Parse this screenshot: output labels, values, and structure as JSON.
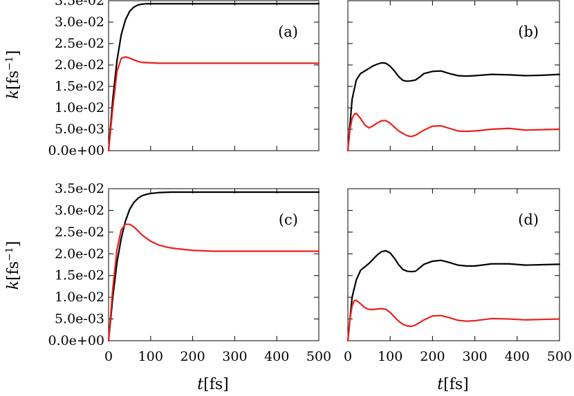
{
  "chart_data": [
    {
      "type": "line",
      "panel_label": "(a)",
      "xlim": [
        0,
        500
      ],
      "ylim": [
        0,
        0.035
      ],
      "grid": false,
      "series": [
        {
          "color": "#000000",
          "x": [
            0,
            10,
            20,
            30,
            40,
            50,
            60,
            70,
            80,
            90,
            100,
            120,
            150,
            200,
            300,
            400,
            500
          ],
          "values": [
            0,
            0.012,
            0.021,
            0.027,
            0.0305,
            0.0325,
            0.0335,
            0.034,
            0.0342,
            0.0343,
            0.0343,
            0.0343,
            0.0343,
            0.0343,
            0.0343,
            0.0343,
            0.0343
          ]
        },
        {
          "color": "#e8201b",
          "x": [
            0,
            10,
            20,
            30,
            40,
            50,
            60,
            70,
            80,
            100,
            120,
            150,
            200,
            300,
            400,
            500
          ],
          "values": [
            0,
            0.01,
            0.0185,
            0.0215,
            0.0219,
            0.0216,
            0.0212,
            0.0208,
            0.0206,
            0.0205,
            0.0204,
            0.0204,
            0.0204,
            0.0204,
            0.0204,
            0.0204
          ]
        }
      ]
    },
    {
      "type": "line",
      "panel_label": "(b)",
      "xlim": [
        0,
        500
      ],
      "ylim": [
        0,
        0.035
      ],
      "grid": false,
      "series": [
        {
          "color": "#000000",
          "x": [
            0,
            10,
            20,
            30,
            40,
            50,
            60,
            70,
            80,
            90,
            100,
            110,
            120,
            130,
            140,
            150,
            160,
            170,
            180,
            200,
            220,
            240,
            260,
            280,
            300,
            340,
            380,
            420,
            460,
            500
          ],
          "values": [
            0,
            0.012,
            0.0165,
            0.018,
            0.0186,
            0.0192,
            0.0198,
            0.0202,
            0.0205,
            0.0204,
            0.0197,
            0.0186,
            0.0173,
            0.0164,
            0.0162,
            0.0163,
            0.0165,
            0.0172,
            0.018,
            0.0185,
            0.0186,
            0.018,
            0.0175,
            0.0174,
            0.0175,
            0.0178,
            0.0177,
            0.0175,
            0.0176,
            0.0178
          ]
        },
        {
          "color": "#e8201b",
          "x": [
            0,
            5,
            10,
            15,
            20,
            30,
            40,
            50,
            60,
            70,
            80,
            90,
            100,
            110,
            120,
            130,
            140,
            150,
            160,
            180,
            200,
            220,
            240,
            260,
            280,
            300,
            340,
            380,
            420,
            460,
            500
          ],
          "values": [
            0,
            0.005,
            0.0075,
            0.0085,
            0.0087,
            0.0075,
            0.006,
            0.0053,
            0.0058,
            0.0065,
            0.007,
            0.007,
            0.0064,
            0.0055,
            0.0046,
            0.004,
            0.0035,
            0.0033,
            0.0036,
            0.0048,
            0.0057,
            0.0058,
            0.0052,
            0.0046,
            0.0045,
            0.0046,
            0.005,
            0.0052,
            0.0048,
            0.0049,
            0.005
          ]
        }
      ]
    },
    {
      "type": "line",
      "panel_label": "(c)",
      "xlim": [
        0,
        500
      ],
      "ylim": [
        0,
        0.035
      ],
      "grid": false,
      "series": [
        {
          "color": "#000000",
          "x": [
            0,
            10,
            20,
            30,
            40,
            50,
            60,
            70,
            80,
            90,
            100,
            120,
            150,
            200,
            250,
            300,
            400,
            500
          ],
          "values": [
            0,
            0.01,
            0.018,
            0.0235,
            0.0275,
            0.0302,
            0.0318,
            0.0328,
            0.0334,
            0.0337,
            0.0339,
            0.0341,
            0.0342,
            0.0342,
            0.0342,
            0.0342,
            0.0342,
            0.0342
          ]
        },
        {
          "color": "#e8201b",
          "x": [
            0,
            10,
            20,
            30,
            40,
            50,
            60,
            70,
            80,
            100,
            120,
            140,
            160,
            180,
            200,
            250,
            300,
            400,
            500
          ],
          "values": [
            0,
            0.012,
            0.021,
            0.0255,
            0.0268,
            0.0268,
            0.0262,
            0.0253,
            0.0243,
            0.0229,
            0.022,
            0.0215,
            0.0212,
            0.021,
            0.0208,
            0.0206,
            0.0206,
            0.0206,
            0.0206
          ]
        }
      ]
    },
    {
      "type": "line",
      "panel_label": "(d)",
      "xlim": [
        0,
        500
      ],
      "ylim": [
        0,
        0.035
      ],
      "grid": false,
      "series": [
        {
          "color": "#000000",
          "x": [
            0,
            10,
            20,
            30,
            40,
            50,
            60,
            70,
            80,
            90,
            100,
            110,
            120,
            130,
            140,
            150,
            160,
            170,
            180,
            200,
            220,
            240,
            260,
            280,
            300,
            340,
            380,
            420,
            460,
            500
          ],
          "values": [
            0,
            0.01,
            0.014,
            0.0162,
            0.017,
            0.0178,
            0.0188,
            0.0198,
            0.0205,
            0.0207,
            0.0202,
            0.019,
            0.0175,
            0.0164,
            0.016,
            0.0159,
            0.016,
            0.0168,
            0.0176,
            0.0183,
            0.0185,
            0.018,
            0.0174,
            0.0172,
            0.0172,
            0.0177,
            0.0177,
            0.0174,
            0.0175,
            0.0176
          ]
        },
        {
          "color": "#e8201b",
          "x": [
            0,
            5,
            10,
            15,
            20,
            30,
            40,
            50,
            60,
            70,
            80,
            90,
            100,
            110,
            120,
            130,
            140,
            150,
            160,
            180,
            200,
            220,
            240,
            260,
            280,
            300,
            340,
            380,
            420,
            460,
            500
          ],
          "values": [
            0,
            0.005,
            0.008,
            0.0092,
            0.0093,
            0.0085,
            0.0076,
            0.0072,
            0.0072,
            0.0073,
            0.0074,
            0.0072,
            0.0065,
            0.0055,
            0.0045,
            0.0038,
            0.0034,
            0.0033,
            0.0036,
            0.0048,
            0.0057,
            0.0058,
            0.0053,
            0.0047,
            0.0045,
            0.0046,
            0.0051,
            0.005,
            0.0048,
            0.0049,
            0.005
          ]
        }
      ]
    }
  ],
  "y_tick_labels": [
    "0.0e+00",
    "5.0e-03",
    "1.0e-02",
    "1.5e-02",
    "2.0e-02",
    "2.5e-02",
    "3.0e-02",
    "3.5e-02"
  ],
  "y_tick_values": [
    0,
    0.005,
    0.01,
    0.015,
    0.02,
    0.025,
    0.03,
    0.035
  ],
  "x_tick_labels": [
    "0",
    "100",
    "200",
    "300",
    "400",
    "500"
  ],
  "x_tick_values": [
    0,
    100,
    200,
    300,
    400,
    500
  ],
  "ylabel": {
    "var": "k",
    "unit": "[fs",
    "exp": "−1",
    "close": "]"
  },
  "xlabel": {
    "var": "t",
    "unit": "[fs]"
  }
}
